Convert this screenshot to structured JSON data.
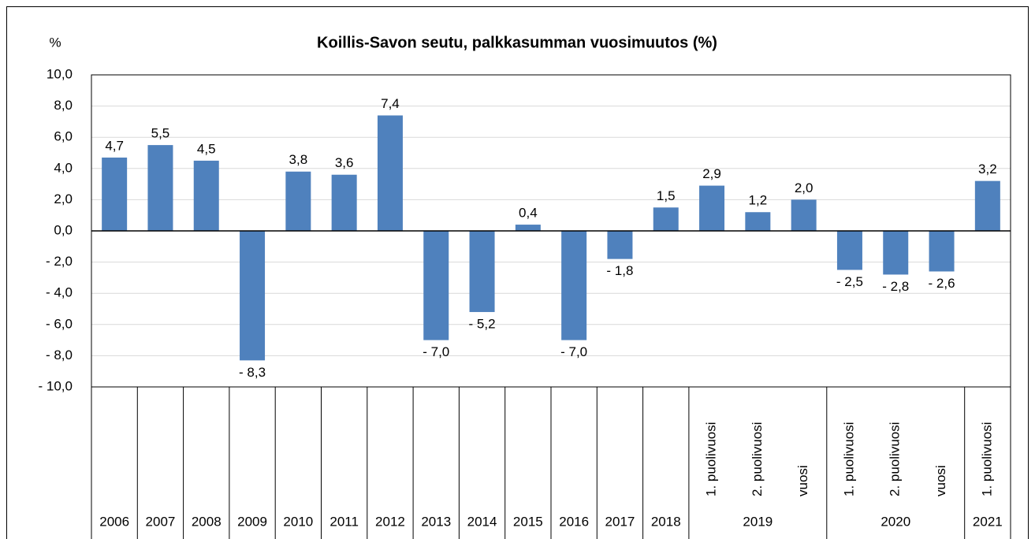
{
  "chart_data": {
    "type": "bar",
    "title": "Koillis-Savon seutu, palkkasumman vuosimuutos (%)",
    "y_axis_label": "%",
    "color": "#4f81bd",
    "grid": true,
    "groups": [
      {
        "label": "2006",
        "categories": [
          null
        ]
      },
      {
        "label": "2007",
        "categories": [
          null
        ]
      },
      {
        "label": "2008",
        "categories": [
          null
        ]
      },
      {
        "label": "2009",
        "categories": [
          null
        ]
      },
      {
        "label": "2010",
        "categories": [
          null
        ]
      },
      {
        "label": "2011",
        "categories": [
          null
        ]
      },
      {
        "label": "2012",
        "categories": [
          null
        ]
      },
      {
        "label": "2013",
        "categories": [
          null
        ]
      },
      {
        "label": "2014",
        "categories": [
          null
        ]
      },
      {
        "label": "2015",
        "categories": [
          null
        ]
      },
      {
        "label": "2016",
        "categories": [
          null
        ]
      },
      {
        "label": "2017",
        "categories": [
          null
        ]
      },
      {
        "label": "2018",
        "categories": [
          null
        ]
      },
      {
        "label": "2019",
        "categories": [
          "1. puolivuosi",
          "2. puolivuosi",
          "vuosi"
        ]
      },
      {
        "label": "2020",
        "categories": [
          "1. puolivuosi",
          "2. puolivuosi",
          "vuosi"
        ]
      },
      {
        "label": "2021",
        "categories": [
          "1. puolivuosi"
        ]
      }
    ],
    "values": [
      4.7,
      5.5,
      4.5,
      -8.3,
      3.8,
      3.6,
      7.4,
      -7.0,
      -5.2,
      0.4,
      -7.0,
      -1.8,
      1.5,
      2.9,
      1.2,
      2.0,
      -2.5,
      -2.8,
      -2.6,
      3.2
    ],
    "value_labels": [
      "4,7",
      "5,5",
      "4,5",
      "- 8,3",
      "3,8",
      "3,6",
      "7,4",
      "- 7,0",
      "- 5,2",
      "0,4",
      "- 7,0",
      "- 1,8",
      "1,5",
      "2,9",
      "1,2",
      "2,0",
      "- 2,5",
      "- 2,8",
      "- 2,6",
      "3,2"
    ],
    "ylim": [
      -10,
      10
    ],
    "yticks": [
      {
        "value": -10,
        "label": "- 10,0"
      },
      {
        "value": -8,
        "label": "- 8,0"
      },
      {
        "value": -6,
        "label": "- 6,0"
      },
      {
        "value": -4,
        "label": "- 4,0"
      },
      {
        "value": -2,
        "label": "- 2,0"
      },
      {
        "value": 0,
        "label": "0,0"
      },
      {
        "value": 2,
        "label": "2,0"
      },
      {
        "value": 4,
        "label": "4,0"
      },
      {
        "value": 6,
        "label": "6,0"
      },
      {
        "value": 8,
        "label": "8,0"
      },
      {
        "value": 10,
        "label": "10,0"
      }
    ]
  }
}
